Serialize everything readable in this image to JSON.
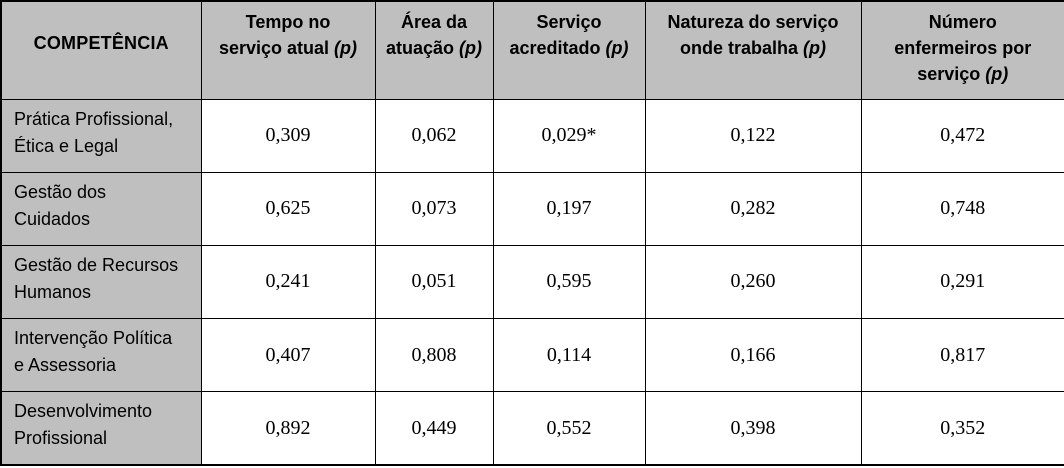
{
  "table": {
    "header": {
      "competencia": "COMPETÊNCIA",
      "columns": [
        "Tempo no\nserviço atual (p)",
        "Área da\natuação (p)",
        "Serviço\nacreditado (p)",
        "Natureza do serviço\nonde trabalha (p)",
        "Número\nenfermeiros por\nserviço (p)"
      ]
    },
    "rows": [
      {
        "category": "Prática Profissional,\nÉtica e Legal",
        "values": [
          "0,309",
          "0,062",
          "0,029*",
          "0,122",
          "0,472"
        ]
      },
      {
        "category": "Gestão dos\nCuidados",
        "values": [
          "0,625",
          "0,073",
          "0,197",
          "0,282",
          "0,748"
        ]
      },
      {
        "category": "Gestão de Recursos\nHumanos",
        "values": [
          "0,241",
          "0,051",
          "0,595",
          "0,260",
          "0,291"
        ]
      },
      {
        "category": "Intervenção Política\ne Assessoria",
        "values": [
          "0,407",
          "0,808",
          "0,114",
          "0,166",
          "0,817"
        ]
      },
      {
        "category": "Desenvolvimento\nProfissional",
        "values": [
          "0,892",
          "0,449",
          "0,552",
          "0,398",
          "0,352"
        ]
      }
    ],
    "colors": {
      "header_bg": "#bfbfbf",
      "border": "#000000",
      "value_bg": "#ffffff"
    }
  }
}
